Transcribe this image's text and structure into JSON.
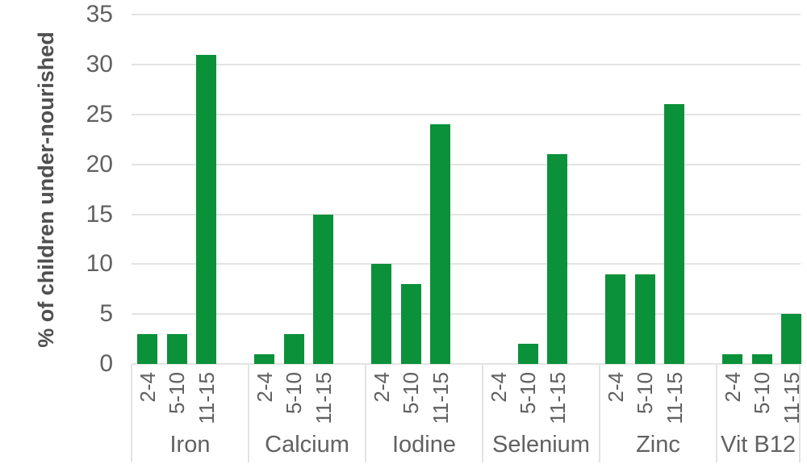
{
  "chart_data": {
    "type": "bar",
    "title": "",
    "xlabel": "",
    "ylabel": "% of children under-nourished",
    "ylim": [
      0,
      35
    ],
    "yticks": [
      0,
      5,
      10,
      15,
      20,
      25,
      30,
      35
    ],
    "grid": true,
    "legend_position": "none",
    "age_categories": [
      "2-4",
      "5-10",
      "11-15"
    ],
    "categories": [
      "Iron",
      "Calcium",
      "Iodine",
      "Selenium",
      "Zinc",
      "Vit B12"
    ],
    "groups": [
      {
        "name": "Iron",
        "values": [
          3,
          3,
          31
        ]
      },
      {
        "name": "Calcium",
        "values": [
          1,
          3,
          15
        ]
      },
      {
        "name": "Iodine",
        "values": [
          10,
          8,
          24
        ]
      },
      {
        "name": "Selenium",
        "values": [
          0,
          2,
          21
        ]
      },
      {
        "name": "Zinc",
        "values": [
          9,
          9,
          26
        ]
      },
      {
        "name": "Vit B12",
        "values": [
          1,
          1,
          5
        ]
      }
    ],
    "colors": {
      "bar": "#0a9139",
      "gridline": "#e3e3e3",
      "divider": "#e3e3e3",
      "tick_text": "#616161",
      "axis_title_text": "#4f4f4f"
    }
  }
}
